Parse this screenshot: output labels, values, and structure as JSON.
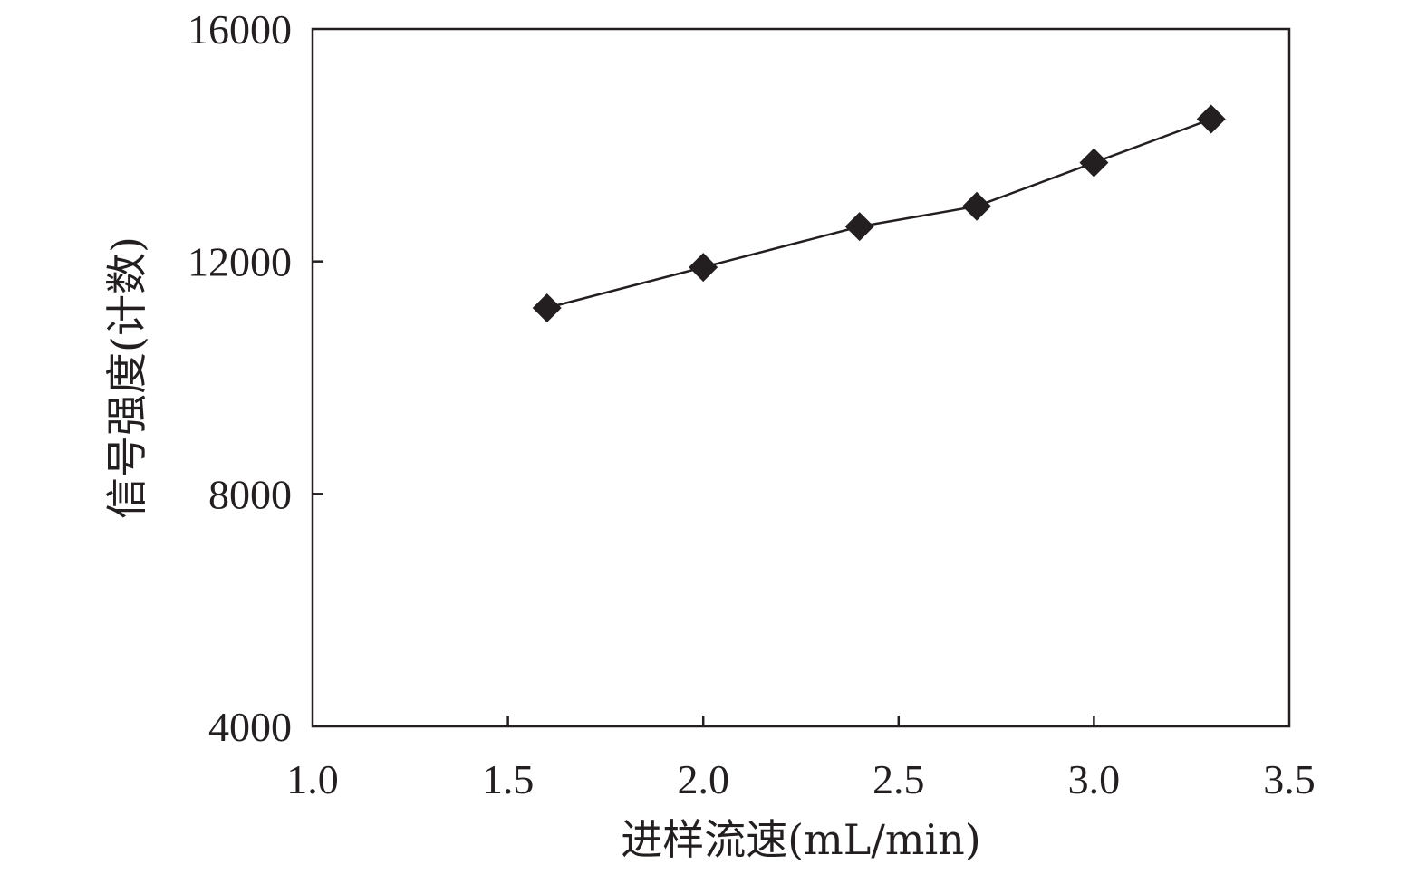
{
  "chart_data": {
    "type": "line",
    "xlabel": "进样流速(mL/min)",
    "ylabel": "信号强度(计数)",
    "xlim": [
      1.0,
      3.5
    ],
    "ylim": [
      4000,
      16000
    ],
    "x_ticks": [
      1.0,
      1.5,
      2.0,
      2.5,
      3.0,
      3.5
    ],
    "x_tick_labels": [
      "1.0",
      "1.5",
      "2.0",
      "2.5",
      "3.0",
      "3.5"
    ],
    "y_ticks": [
      4000,
      8000,
      12000,
      16000
    ],
    "y_tick_labels": [
      "4000",
      "8000",
      "12000",
      "16000"
    ],
    "grid": false,
    "marker": "diamond",
    "colors": {
      "series": "#231f20",
      "axis": "#231f20"
    },
    "series": [
      {
        "x": [
          1.6,
          2.0,
          2.4,
          2.7,
          3.0,
          3.3
        ],
        "y": [
          11200,
          11900,
          12600,
          12950,
          13700,
          14450
        ]
      }
    ]
  }
}
